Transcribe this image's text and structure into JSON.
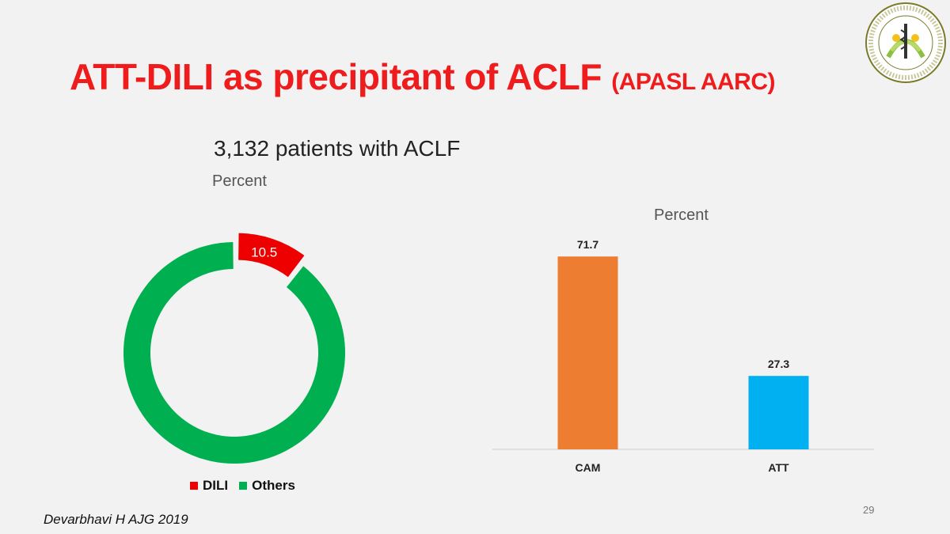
{
  "slide": {
    "title_main": "ATT-DILI as precipitant of ACLF",
    "title_sub": "(APASL AARC)",
    "subtitle": "3,132 patients with ACLF",
    "citation": "Devarbhavi H AJG 2019",
    "page_number": "29",
    "title_color": "#ee1c1c"
  },
  "logo": {
    "icon": "institute-seal-icon"
  },
  "chart_data": [
    {
      "type": "pie",
      "variant": "donut",
      "ylabel": "Percent",
      "slices": [
        {
          "name": "DILI",
          "value": 10.5,
          "label": "10.5",
          "color": "#ee0000",
          "exploded": true
        },
        {
          "name": "Others",
          "value": 89.5,
          "label": "",
          "color": "#00b050"
        }
      ],
      "legend": [
        "DILI",
        "Others"
      ],
      "legend_position": "bottom"
    },
    {
      "type": "bar",
      "ylabel": "Percent",
      "categories": [
        "CAM",
        "ATT"
      ],
      "values": [
        71.7,
        27.3
      ],
      "data_labels": [
        "71.7",
        "27.3"
      ],
      "colors": [
        "#ed7d31",
        "#00b0f0"
      ],
      "ylim": [
        0,
        100
      ]
    }
  ]
}
